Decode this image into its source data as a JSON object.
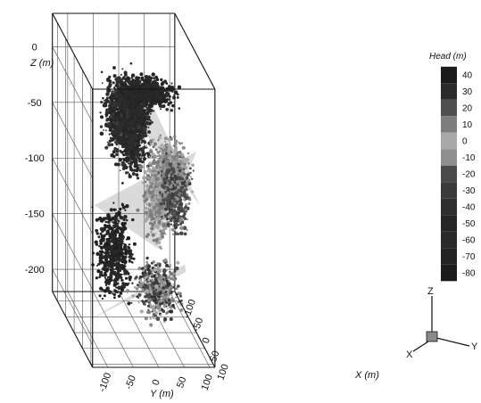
{
  "chart_data": {
    "type": "scatter",
    "subtype": "3d-volume-point-cloud",
    "title": "",
    "axes": {
      "z": {
        "label": "Z (m)",
        "ticks": [
          0,
          -50,
          -100,
          -150,
          -200
        ],
        "range": [
          -220,
          30
        ]
      },
      "y": {
        "label": "Y (m)",
        "ticks": [
          -100,
          -50,
          0,
          50,
          100
        ],
        "range": [
          -130,
          110
        ]
      },
      "x": {
        "label": "X (m)",
        "ticks": [
          100,
          50,
          0,
          -50,
          -100
        ],
        "range": [
          110,
          -130
        ]
      }
    },
    "colorbar": {
      "title": "Head (m)",
      "ticks": [
        40,
        30,
        20,
        10,
        0,
        -10,
        -20,
        -30,
        -40,
        -50,
        -60,
        -70,
        -80
      ],
      "range": [
        -85,
        45
      ],
      "colors": {
        "40": "#1a1a1a",
        "30": "#2a2a2a",
        "20": "#505050",
        "10": "#7d7d7d",
        "0": "#a8a8a8",
        "-10": "#8e8e8e",
        "-20": "#4a4a4a",
        "-30": "#3a3a3a",
        "-40": "#2e2e2e",
        "-50": "#262626",
        "-60": "#2a2a2a",
        "-70": "#232323",
        "-80": "#1c1c1c"
      }
    },
    "grid": true,
    "orientation_triad": {
      "labels": [
        "Z",
        "Y",
        "X"
      ]
    }
  }
}
